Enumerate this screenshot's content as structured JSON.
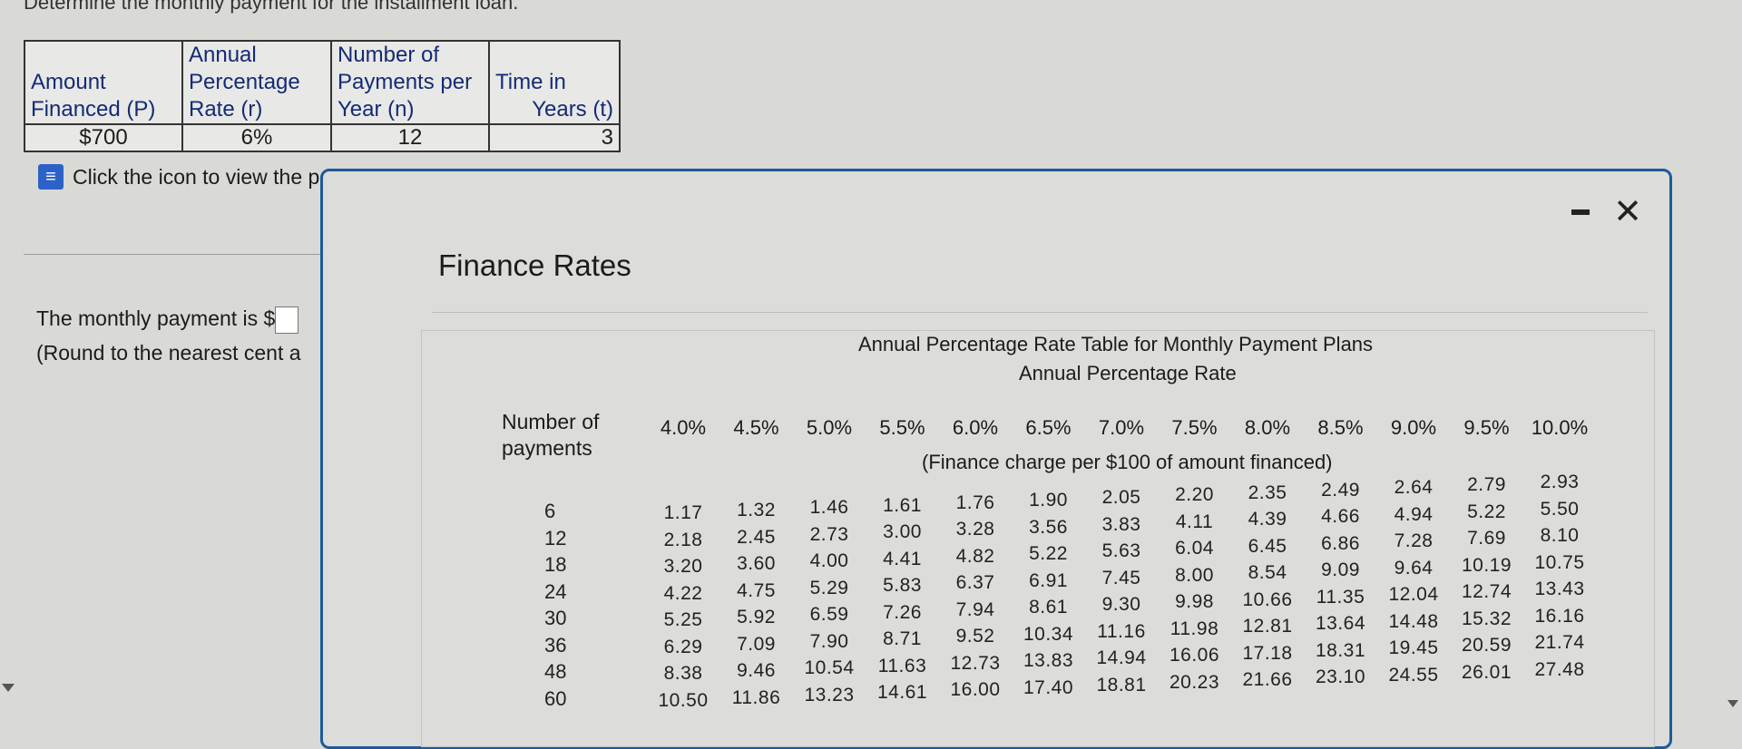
{
  "question": {
    "title": "Determine the monthly payment for the installment loan."
  },
  "loan_table": {
    "headers": [
      [
        "Amount",
        "Financed (P)"
      ],
      [
        "Annual",
        "Percentage",
        "Rate (r)"
      ],
      [
        "Number of",
        "Payments per",
        "Year (n)"
      ],
      [
        "Time in",
        "Years (t)"
      ]
    ],
    "values": [
      "$700",
      "6%",
      "12",
      "3"
    ]
  },
  "apr_link": {
    "icon": "table-icon",
    "text": "Click the icon to view the partial APR table."
  },
  "answer": {
    "prefix": "The monthly payment is $",
    "round_note": "(Round to the nearest cent a"
  },
  "popup": {
    "title": "Finance Rates",
    "close_symbol": "✕",
    "table_title": "Annual Percentage Rate Table for Monthly Payment Plans",
    "rate_header": "Annual Percentage Rate",
    "payments_header": [
      "Number of",
      "payments"
    ],
    "subcaption": "(Finance charge per $100 of amount financed)",
    "rates": [
      "4.0%",
      "4.5%",
      "5.0%",
      "5.5%",
      "6.0%",
      "6.5%",
      "7.0%",
      "7.5%",
      "8.0%",
      "8.5%",
      "9.0%",
      "9.5%",
      "10.0%"
    ],
    "payments": [
      "6",
      "12",
      "18",
      "24",
      "30",
      "36",
      "48",
      "60"
    ],
    "columns": [
      [
        "1.17",
        "2.18",
        "3.20",
        "4.22",
        "5.25",
        "6.29",
        "8.38",
        "10.50"
      ],
      [
        "1.32",
        "2.45",
        "3.60",
        "4.75",
        "5.92",
        "7.09",
        "9.46",
        "11.86"
      ],
      [
        "1.46",
        "2.73",
        "4.00",
        "5.29",
        "6.59",
        "7.90",
        "10.54",
        "13.23"
      ],
      [
        "1.61",
        "3.00",
        "4.41",
        "5.83",
        "7.26",
        "8.71",
        "11.63",
        "14.61"
      ],
      [
        "1.76",
        "3.28",
        "4.82",
        "6.37",
        "7.94",
        "9.52",
        "12.73",
        "16.00"
      ],
      [
        "1.90",
        "3.56",
        "5.22",
        "6.91",
        "8.61",
        "10.34",
        "13.83",
        "17.40"
      ],
      [
        "2.05",
        "3.83",
        "5.63",
        "7.45",
        "9.30",
        "11.16",
        "14.94",
        "18.81"
      ],
      [
        "2.20",
        "4.11",
        "6.04",
        "8.00",
        "9.98",
        "11.98",
        "16.06",
        "20.23"
      ],
      [
        "2.35",
        "4.39",
        "6.45",
        "8.54",
        "10.66",
        "12.81",
        "17.18",
        "21.66"
      ],
      [
        "2.49",
        "4.66",
        "6.86",
        "9.09",
        "11.35",
        "13.64",
        "18.31",
        "23.10"
      ],
      [
        "2.64",
        "4.94",
        "7.28",
        "9.64",
        "12.04",
        "14.48",
        "19.45",
        "24.55"
      ],
      [
        "2.79",
        "5.22",
        "7.69",
        "10.19",
        "12.74",
        "15.32",
        "20.59",
        "26.01"
      ],
      [
        "2.93",
        "5.50",
        "8.10",
        "10.75",
        "13.43",
        "16.16",
        "21.74",
        "27.48"
      ]
    ]
  }
}
